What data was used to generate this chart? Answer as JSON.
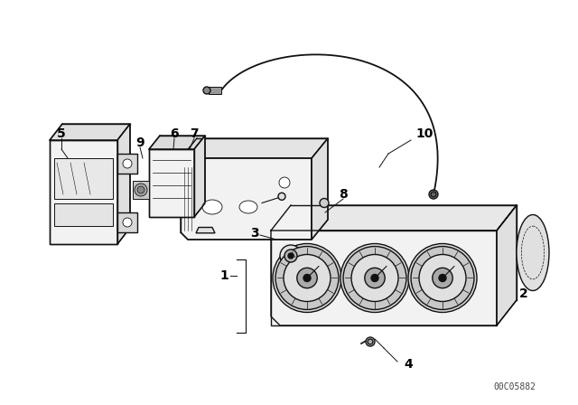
{
  "background_color": "#ffffff",
  "line_color": "#111111",
  "part_number_text": "00C05882",
  "label_fontsize": 10,
  "label_bold": true,
  "cable_color": "#333333",
  "fill_light": "#f2f2f2",
  "fill_mid": "#e0e0e0",
  "fill_dark": "#cccccc"
}
